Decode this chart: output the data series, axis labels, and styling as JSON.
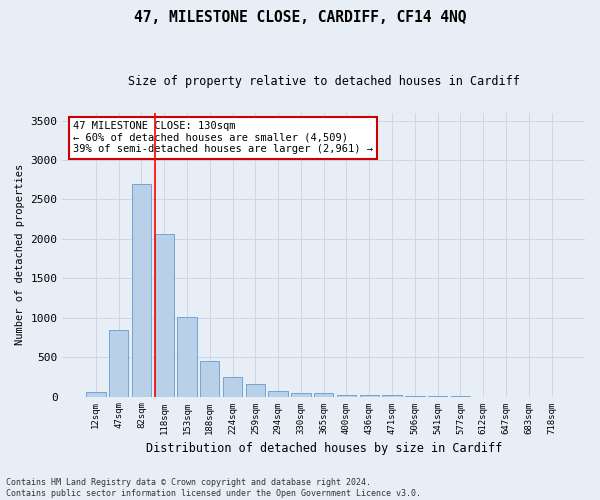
{
  "title": "47, MILESTONE CLOSE, CARDIFF, CF14 4NQ",
  "subtitle": "Size of property relative to detached houses in Cardiff",
  "xlabel": "Distribution of detached houses by size in Cardiff",
  "ylabel": "Number of detached properties",
  "footer_line1": "Contains HM Land Registry data © Crown copyright and database right 2024.",
  "footer_line2": "Contains public sector information licensed under the Open Government Licence v3.0.",
  "categories": [
    "12sqm",
    "47sqm",
    "82sqm",
    "118sqm",
    "153sqm",
    "188sqm",
    "224sqm",
    "259sqm",
    "294sqm",
    "330sqm",
    "365sqm",
    "400sqm",
    "436sqm",
    "471sqm",
    "506sqm",
    "541sqm",
    "577sqm",
    "612sqm",
    "647sqm",
    "683sqm",
    "718sqm"
  ],
  "values": [
    60,
    850,
    2700,
    2060,
    1010,
    455,
    250,
    160,
    65,
    50,
    40,
    20,
    15,
    20,
    5,
    3,
    2,
    0,
    0,
    0,
    0
  ],
  "bar_color": "#b8d0e8",
  "bar_edge_color": "#6699cc",
  "property_line_index": 3,
  "annotation_text": "47 MILESTONE CLOSE: 130sqm\n← 60% of detached houses are smaller (4,509)\n39% of semi-detached houses are larger (2,961) →",
  "annotation_box_color": "#ffffff",
  "annotation_box_edge": "#cc0000",
  "grid_color": "#ccd6e8",
  "background_color": "#e8eef6",
  "ylim": [
    0,
    3600
  ],
  "yticks": [
    0,
    500,
    1000,
    1500,
    2000,
    2500,
    3000,
    3500
  ]
}
